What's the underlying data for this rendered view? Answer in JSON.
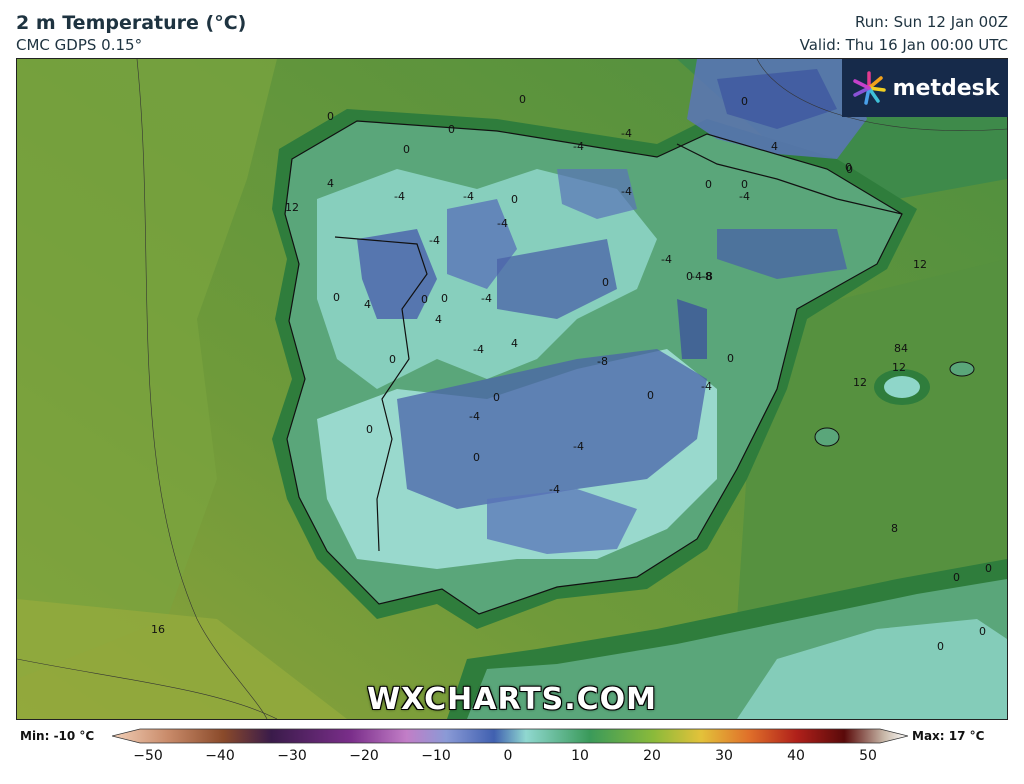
{
  "header": {
    "title": "2 m Temperature (°C)",
    "model": "CMC GDPS 0.15°",
    "run": "Run: Sun 12 Jan 00Z",
    "valid": "Valid: Thu 16 Jan 00:00 UTC"
  },
  "logo": {
    "text": "metdesk",
    "icon": "starburst-logo-icon"
  },
  "watermark": "WXCHARTS.COM",
  "legend": {
    "min_label": "Min: -10 °C",
    "max_label": "Max: 17 °C",
    "ticks": [
      "−50",
      "−40",
      "−30",
      "−20",
      "−10",
      "0",
      "10",
      "20",
      "30",
      "40",
      "50"
    ],
    "range": [
      -50,
      50
    ]
  },
  "map": {
    "region": "Iberian Peninsula",
    "contour_labels": [
      {
        "text": "0"
      },
      {
        "text": "0"
      },
      {
        "text": "0"
      },
      {
        "text": "0"
      },
      {
        "text": "-4"
      },
      {
        "text": "-4"
      },
      {
        "text": "-4"
      },
      {
        "text": "-4"
      },
      {
        "text": "0"
      },
      {
        "text": "-4"
      },
      {
        "text": "4"
      },
      {
        "text": "12"
      },
      {
        "text": "-4"
      },
      {
        "text": "0"
      },
      {
        "text": "0"
      },
      {
        "text": "4"
      },
      {
        "text": "0"
      },
      {
        "text": "-4"
      },
      {
        "text": "4"
      },
      {
        "text": "4"
      },
      {
        "text": "-4"
      },
      {
        "text": "0"
      },
      {
        "text": "0"
      },
      {
        "text": "-8"
      },
      {
        "text": "-8"
      },
      {
        "text": "-4"
      },
      {
        "text": "0"
      },
      {
        "text": "0"
      },
      {
        "text": "-4"
      },
      {
        "text": "0"
      },
      {
        "text": "-4"
      },
      {
        "text": "-4"
      },
      {
        "text": "0"
      },
      {
        "text": "-4"
      },
      {
        "text": "-4-8"
      },
      {
        "text": "0"
      },
      {
        "text": "-4"
      },
      {
        "text": "0"
      },
      {
        "text": "0"
      },
      {
        "text": "4"
      },
      {
        "text": "0"
      },
      {
        "text": "-4"
      },
      {
        "text": "0"
      },
      {
        "text": "-8"
      },
      {
        "text": "-4"
      },
      {
        "text": "4"
      },
      {
        "text": "8"
      },
      {
        "text": "12"
      },
      {
        "text": "84"
      },
      {
        "text": "12"
      },
      {
        "text": "12"
      },
      {
        "text": "8"
      },
      {
        "text": "0"
      },
      {
        "text": "0"
      },
      {
        "text": "0"
      },
      {
        "text": "0"
      },
      {
        "text": "16"
      },
      {
        "text": "0"
      },
      {
        "text": "0"
      }
    ]
  }
}
